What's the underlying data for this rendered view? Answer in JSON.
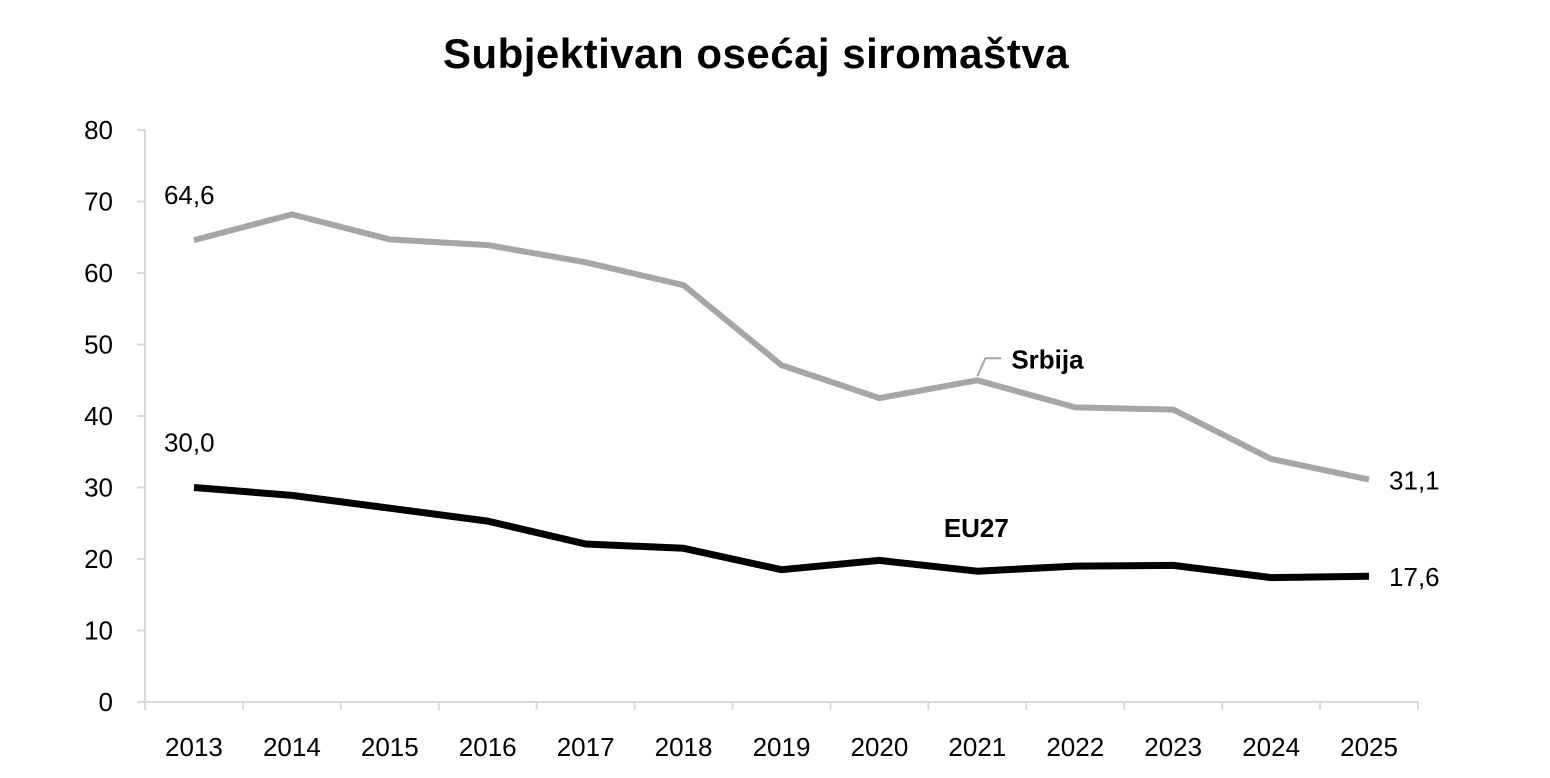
{
  "chart_data": {
    "type": "line",
    "title": "Subjektivan osećaj siromaštva",
    "xlabel": "",
    "ylabel": "",
    "ylim": [
      0,
      80
    ],
    "yticks": [
      "0",
      "10",
      "20",
      "30",
      "40",
      "50",
      "60",
      "70",
      "80"
    ],
    "categories": [
      "2013",
      "2014",
      "2015",
      "2016",
      "2017",
      "2018",
      "2019",
      "2020",
      "2021",
      "2022",
      "2023",
      "2024",
      "2025"
    ],
    "grid": false,
    "legend": "none (series labeled inline)",
    "series": [
      {
        "name": "Srbija",
        "color": "#a6a6a6",
        "values": [
          64.6,
          68.2,
          64.7,
          63.9,
          61.5,
          58.3,
          47.1,
          42.5,
          45.0,
          41.2,
          40.9,
          34.0,
          31.1
        ],
        "labels": [
          {
            "index": 0,
            "text": "64,6"
          },
          {
            "index": 12,
            "text": "31,1"
          }
        ]
      },
      {
        "name": "EU27",
        "color": "#000000",
        "values": [
          30.0,
          28.9,
          27.1,
          25.3,
          22.1,
          21.5,
          18.5,
          19.8,
          18.3,
          19.0,
          19.1,
          17.4,
          17.6
        ],
        "labels": [
          {
            "index": 0,
            "text": "30,0"
          },
          {
            "index": 12,
            "text": "17,6"
          }
        ]
      }
    ]
  }
}
